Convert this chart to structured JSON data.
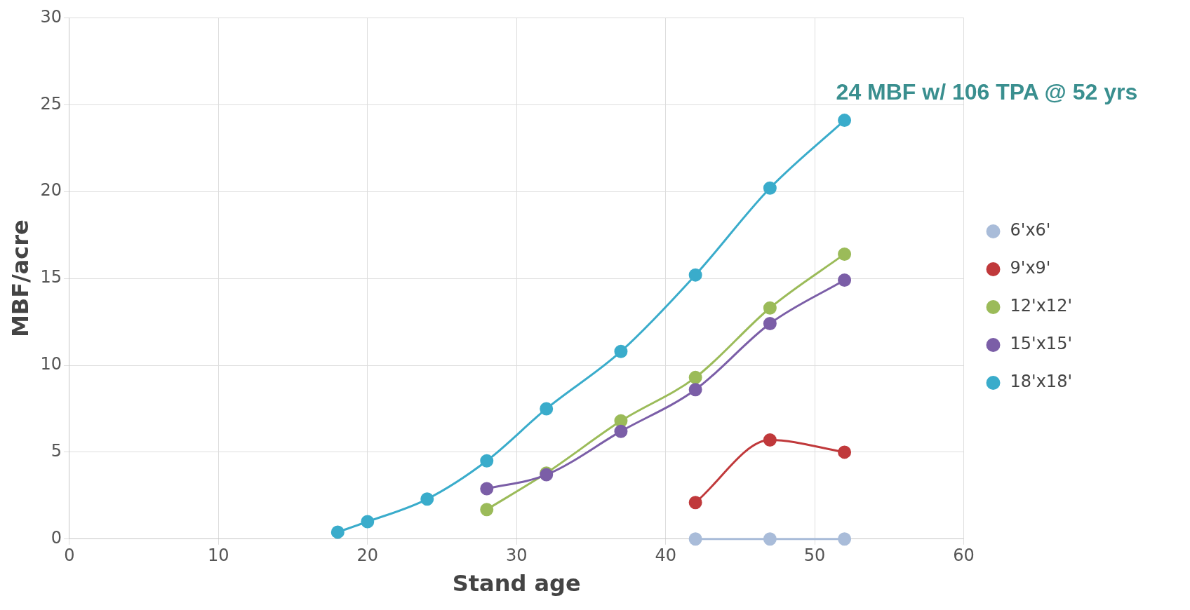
{
  "chart_data": {
    "type": "line",
    "xlabel": "Stand age",
    "ylabel": "MBF/acre",
    "xlim": [
      0,
      60
    ],
    "xticks": [
      0,
      10,
      20,
      30,
      40,
      50,
      60
    ],
    "ylim": [
      0,
      30
    ],
    "yticks": [
      0,
      5,
      10,
      15,
      20,
      25,
      30
    ],
    "grid": true,
    "legend": "right",
    "marker": "circle",
    "line_style": "solid",
    "annotations": [
      {
        "text": "24 MBF w/ 106 TPA @ 52 yrs",
        "x": 52,
        "y": 24.1
      }
    ],
    "series": [
      {
        "name": "6'x6'",
        "color": "#a9bcd9",
        "x": [
          42,
          47,
          52
        ],
        "values": [
          0,
          0,
          0
        ]
      },
      {
        "name": "9'x9'",
        "color": "#c0393b",
        "x": [
          42,
          47,
          52
        ],
        "values": [
          2.1,
          5.7,
          5.0
        ]
      },
      {
        "name": "12'x12'",
        "color": "#9bbb59",
        "x": [
          28,
          32,
          37,
          42,
          47,
          52
        ],
        "values": [
          1.7,
          3.8,
          6.8,
          9.3,
          13.3,
          16.4
        ]
      },
      {
        "name": "15'x15'",
        "color": "#7b5ea7",
        "x": [
          28,
          32,
          37,
          42,
          47,
          52
        ],
        "values": [
          2.9,
          3.7,
          6.2,
          8.6,
          12.4,
          14.9
        ]
      },
      {
        "name": "18'x18'",
        "color": "#3aaccb",
        "x": [
          18,
          20,
          24,
          28,
          32,
          37,
          42,
          47,
          52
        ],
        "values": [
          0.4,
          1.0,
          2.3,
          4.5,
          7.5,
          10.8,
          15.2,
          20.2,
          24.1
        ]
      }
    ]
  }
}
